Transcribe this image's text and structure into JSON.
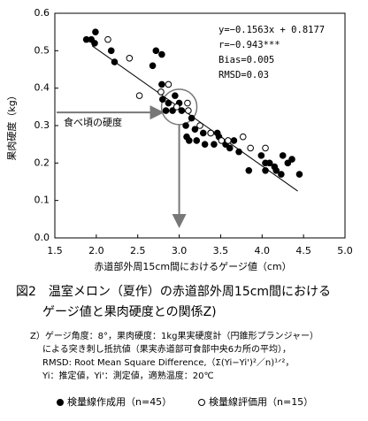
{
  "chart_data": {
    "type": "scatter",
    "xlabel": "赤道部外周15cm間におけるゲージ値（cm）",
    "ylabel": "果肉硬度（kg）",
    "xlim": [
      1.5,
      5.0
    ],
    "ylim": [
      0.0,
      0.6
    ],
    "xticks": [
      {
        "value": 1.5,
        "label": "1.5"
      },
      {
        "value": 2,
        "label": "2.0"
      },
      {
        "value": 2.5,
        "label": "2.5"
      },
      {
        "value": 3,
        "label": "3.0"
      },
      {
        "value": 3.5,
        "label": "3.5"
      },
      {
        "value": 4,
        "label": "4.0"
      },
      {
        "value": 4.5,
        "label": "4.5"
      },
      {
        "value": 5,
        "label": "5.0"
      }
    ],
    "yticks": [
      {
        "value": 0,
        "label": "0.0"
      },
      0.1,
      0.2,
      0.3,
      0.4,
      0.5,
      0.6
    ],
    "series": [
      {
        "name": "検量線作成用（n=45）",
        "color": "#000000",
        "marker": "filled",
        "x": [
          1.88,
          1.94,
          1.99,
          1.98,
          2.18,
          2.22,
          2.72,
          2.79,
          2.68,
          2.79,
          2.8,
          2.87,
          2.84,
          2.92,
          3.0,
          3.03,
          3.08,
          3.09,
          3.12,
          3.19,
          3.21,
          3.29,
          3.31,
          3.38,
          3.46,
          3.48,
          3.56,
          3.61,
          3.66,
          3.72,
          3.84,
          4.04,
          4.09,
          4.15,
          4.17,
          4.23,
          4.25,
          4.31,
          4.36,
          4.45,
          3.99,
          4.04,
          3.15,
          3.42,
          2.95
        ],
        "values": [
          0.53,
          0.53,
          0.55,
          0.52,
          0.5,
          0.47,
          0.5,
          0.49,
          0.46,
          0.41,
          0.37,
          0.36,
          0.34,
          0.34,
          0.36,
          0.34,
          0.3,
          0.27,
          0.26,
          0.29,
          0.26,
          0.28,
          0.25,
          0.28,
          0.28,
          0.27,
          0.25,
          0.24,
          0.26,
          0.23,
          0.18,
          0.2,
          0.2,
          0.19,
          0.18,
          0.17,
          0.22,
          0.2,
          0.21,
          0.17,
          0.22,
          0.18,
          0.32,
          0.25,
          0.38
        ]
      },
      {
        "name": "検量線評価用（n=15）",
        "color": "#000000",
        "marker": "open",
        "x": [
          2.14,
          2.4,
          2.52,
          2.78,
          2.87,
          2.97,
          3.1,
          3.11,
          3.38,
          3.51,
          3.59,
          3.77,
          3.86,
          4.04,
          3.25
        ],
        "values": [
          0.53,
          0.48,
          0.38,
          0.39,
          0.41,
          0.35,
          0.36,
          0.34,
          0.28,
          0.26,
          0.26,
          0.27,
          0.24,
          0.24,
          0.3
        ]
      }
    ],
    "fit_line": {
      "x": [
        1.95,
        4.43
      ],
      "values": [
        0.513,
        0.125
      ]
    },
    "stats": [
      "y=−0.1563x + 0.8177",
      "r=−0.943***",
      "Bias=0.005",
      "RMSD=0.03"
    ],
    "annotation": "食べ頃の硬度",
    "caption": [
      "図2　温室メロン（夏作）の赤道部外周15cm間における",
      "ゲージ値と果肉硬度との関係Z)"
    ],
    "notes": [
      "Z）ゲージ角度：8°，果肉硬度：1kg果実硬度計（円錐形プランジャー）",
      "による突き刺し抵抗値（果実赤道部可食部中央6カ所の平均），",
      "RMSD: Root Mean Square Difference,（Σ(Yi−Yi')²／n)¹ᐟ²，",
      "Yi：推定値，Yi'：測定値，適熟温度：20℃"
    ]
  }
}
